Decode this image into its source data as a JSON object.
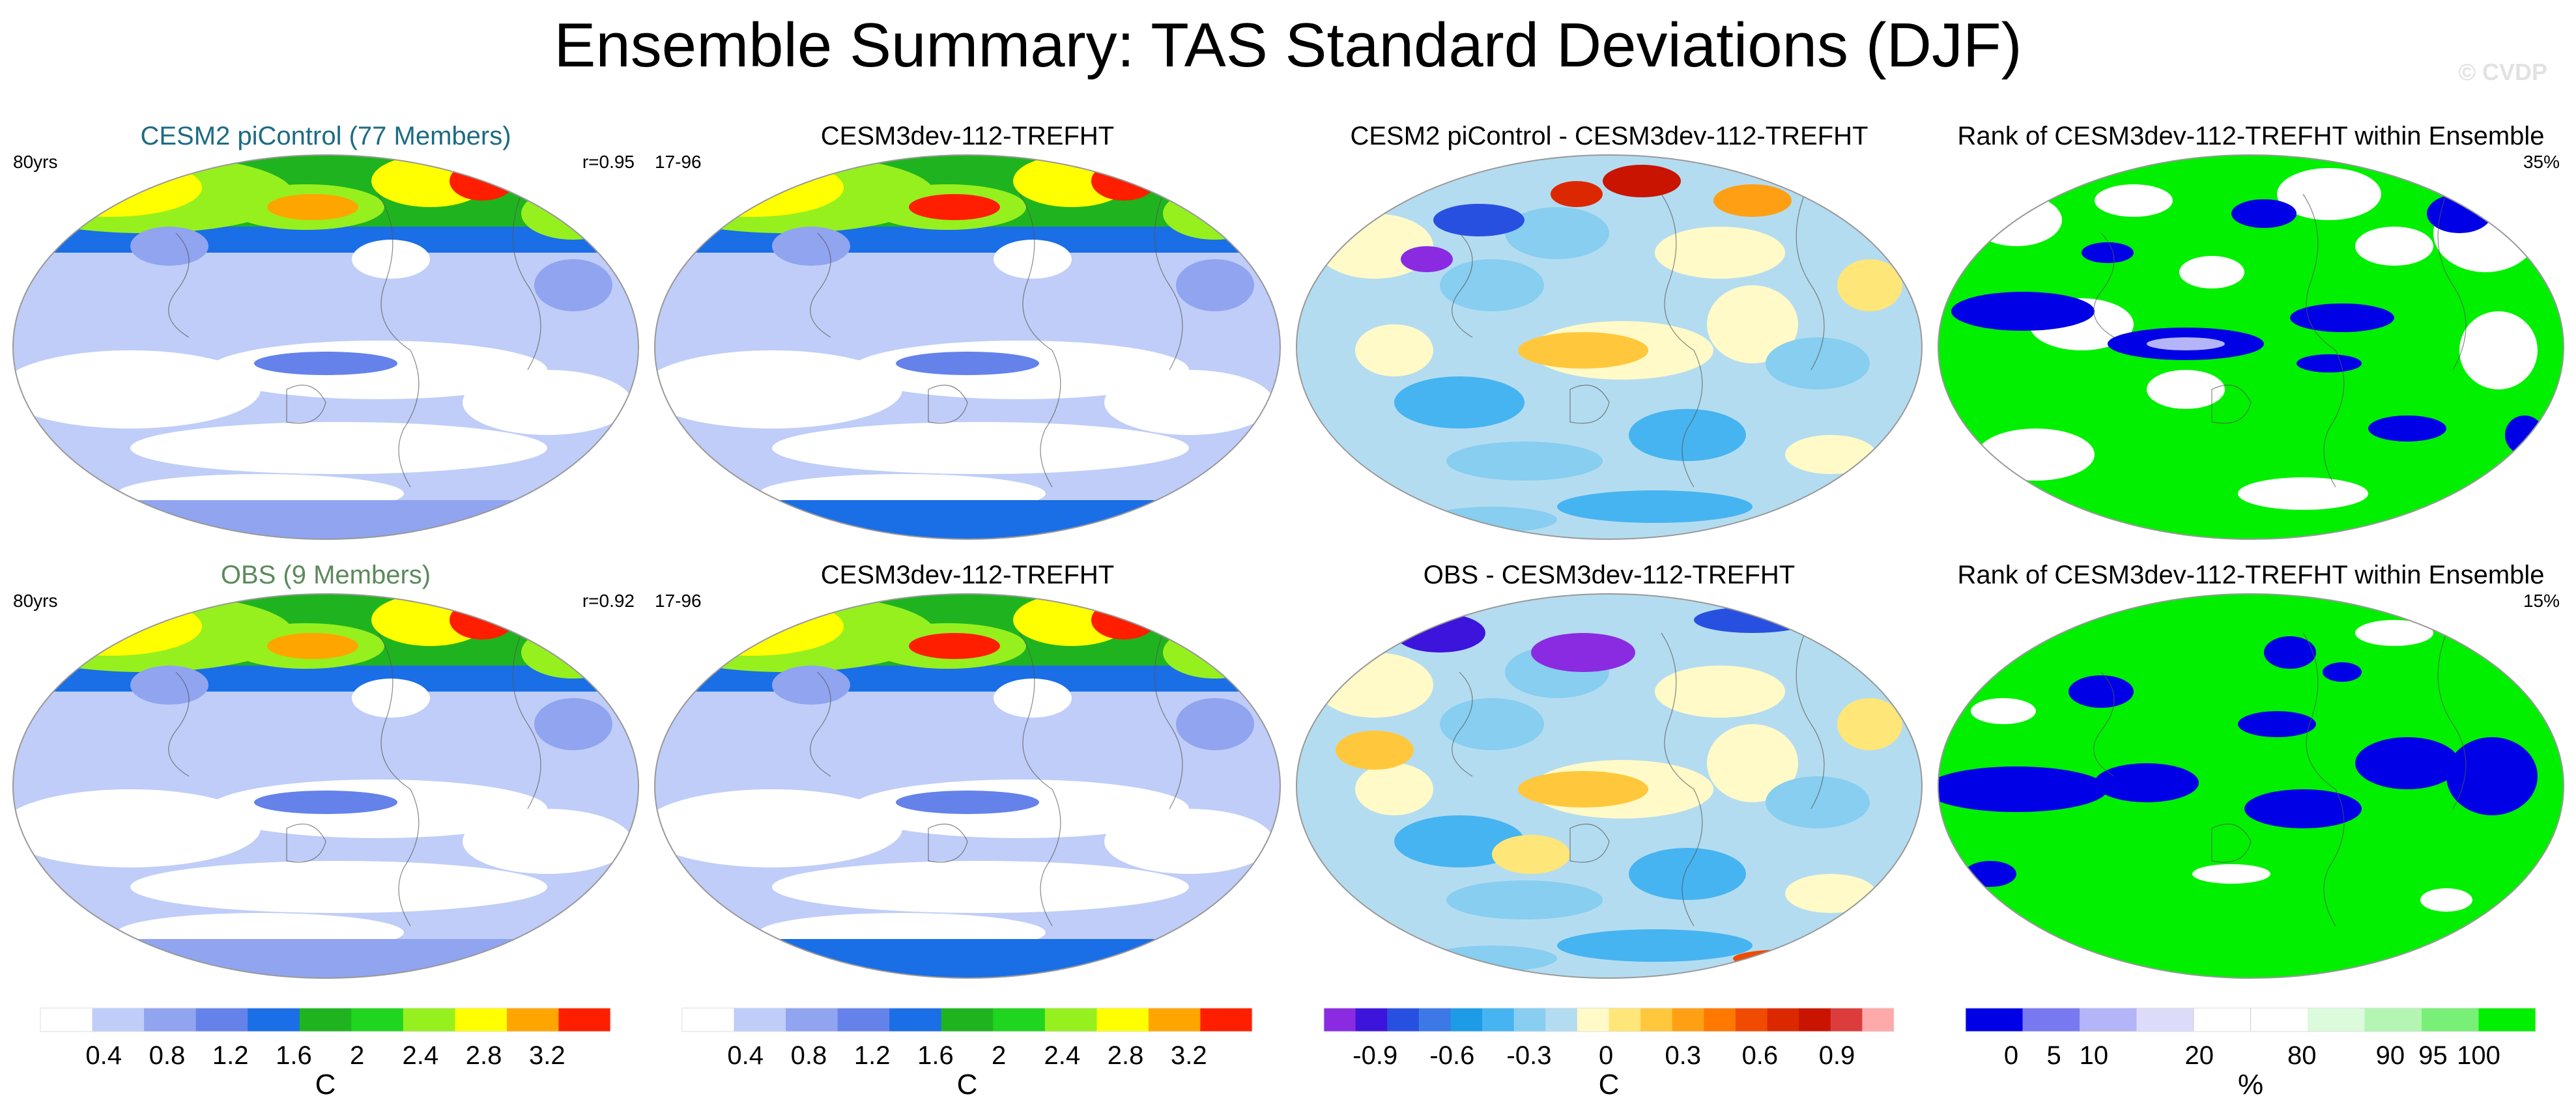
{
  "title": "Ensemble Summary: TAS Standard Deviations (DJF)",
  "watermark": "© CVDP",
  "panels": [
    {
      "id": "p1",
      "title": "CESM2 piControl (77 Members)",
      "title_color": "#1d6b83",
      "left_label": "80yrs",
      "right_label": "r=0.95",
      "kind": "std"
    },
    {
      "id": "p2",
      "title": "CESM3dev-112-TREFHT",
      "title_color": "#000000",
      "left_label": "17-96",
      "right_label": "",
      "kind": "std2"
    },
    {
      "id": "p3",
      "title": "CESM2 piControl - CESM3dev-112-TREFHT",
      "title_color": "#000000",
      "left_label": "",
      "right_label": "",
      "kind": "diff"
    },
    {
      "id": "p4",
      "title": "Rank of CESM3dev-112-TREFHT within Ensemble",
      "title_color": "#000000",
      "left_label": "",
      "right_label": "35%",
      "kind": "rank"
    },
    {
      "id": "p5",
      "title": "OBS (9 Members)",
      "title_color": "#5b8a5b",
      "left_label": "80yrs",
      "right_label": "r=0.92",
      "kind": "std"
    },
    {
      "id": "p6",
      "title": "CESM3dev-112-TREFHT",
      "title_color": "#000000",
      "left_label": "17-96",
      "right_label": "",
      "kind": "std2"
    },
    {
      "id": "p7",
      "title": "OBS - CESM3dev-112-TREFHT",
      "title_color": "#000000",
      "left_label": "",
      "right_label": "",
      "kind": "diff"
    },
    {
      "id": "p8",
      "title": "Rank of CESM3dev-112-TREFHT within Ensemble",
      "title_color": "#000000",
      "left_label": "",
      "right_label": "15%",
      "kind": "rank2"
    }
  ],
  "colorbars": [
    {
      "id": "cb1",
      "unit": "C",
      "ticks": [
        "0.4",
        "0.8",
        "1.2",
        "1.6",
        "2",
        "2.4",
        "2.8",
        "3.2"
      ],
      "colors": [
        "#ffffff",
        "#bfcdf8",
        "#90a4f0",
        "#6482ea",
        "#1a6ee6",
        "#1fb41f",
        "#1fd51f",
        "#96f01e",
        "#ffff00",
        "#ffa500",
        "#ff1e00"
      ]
    },
    {
      "id": "cb2",
      "unit": "C",
      "ticks": [
        "0.4",
        "0.8",
        "1.2",
        "1.6",
        "2",
        "2.4",
        "2.8",
        "3.2"
      ],
      "colors": [
        "#ffffff",
        "#bfcdf8",
        "#90a4f0",
        "#6482ea",
        "#1a6ee6",
        "#1fb41f",
        "#1fd51f",
        "#96f01e",
        "#ffff00",
        "#ffa500",
        "#ff1e00"
      ]
    },
    {
      "id": "cb3",
      "unit": "C",
      "ticks": [
        "-0.9",
        "-0.6",
        "-0.3",
        "0",
        "0.3",
        "0.6",
        "0.9"
      ],
      "colors": [
        "#8a2be2",
        "#3c14dc",
        "#2850e0",
        "#3c78e6",
        "#1e9be6",
        "#46b4f0",
        "#87cef0",
        "#b4dcf0",
        "#fffac8",
        "#ffe678",
        "#ffc83c",
        "#ffa014",
        "#ff7800",
        "#f04b00",
        "#dc2800",
        "#c81400",
        "#dc3c3c",
        "#ffaaaa"
      ]
    },
    {
      "id": "cb4",
      "unit": "%",
      "ticks": [
        "0",
        "5",
        "10",
        "20",
        "80",
        "90",
        "95",
        "100"
      ],
      "colors": [
        "#0000e6",
        "#7878f0",
        "#b4b4f8",
        "#dcdcfa",
        "#ffffff",
        "#ffffff",
        "#dcfadc",
        "#b4f5b4",
        "#78f078",
        "#00f000"
      ]
    }
  ],
  "chart_data": [
    {
      "type": "heatmap",
      "title": "CESM2 piControl (77 Members)",
      "variable": "TAS standard deviation (DJF)",
      "units": "C",
      "left_label": "80yrs",
      "right_label": "r=0.95",
      "levels": [
        0.4,
        0.8,
        1.2,
        1.6,
        2,
        2.4,
        2.8,
        3.2
      ]
    },
    {
      "type": "heatmap",
      "title": "CESM3dev-112-TREFHT",
      "variable": "TAS standard deviation (DJF)",
      "units": "C",
      "left_label": "17-96",
      "levels": [
        0.4,
        0.8,
        1.2,
        1.6,
        2,
        2.4,
        2.8,
        3.2
      ]
    },
    {
      "type": "heatmap",
      "title": "CESM2 piControl - CESM3dev-112-TREFHT",
      "variable": "Difference of TAS standard deviations",
      "units": "C",
      "levels": [
        -0.9,
        -0.6,
        -0.3,
        0,
        0.3,
        0.6,
        0.9
      ]
    },
    {
      "type": "heatmap",
      "title": "Rank of CESM3dev-112-TREFHT within Ensemble",
      "units": "%",
      "right_label": "35%",
      "levels": [
        0,
        5,
        10,
        20,
        80,
        90,
        95,
        100
      ]
    },
    {
      "type": "heatmap",
      "title": "OBS (9 Members)",
      "variable": "TAS standard deviation (DJF)",
      "units": "C",
      "left_label": "80yrs",
      "right_label": "r=0.92",
      "levels": [
        0.4,
        0.8,
        1.2,
        1.6,
        2,
        2.4,
        2.8,
        3.2
      ]
    },
    {
      "type": "heatmap",
      "title": "CESM3dev-112-TREFHT",
      "variable": "TAS standard deviation (DJF)",
      "units": "C",
      "left_label": "17-96",
      "levels": [
        0.4,
        0.8,
        1.2,
        1.6,
        2,
        2.4,
        2.8,
        3.2
      ]
    },
    {
      "type": "heatmap",
      "title": "OBS - CESM3dev-112-TREFHT",
      "variable": "Difference of TAS standard deviations",
      "units": "C",
      "levels": [
        -0.9,
        -0.6,
        -0.3,
        0,
        0.3,
        0.6,
        0.9
      ]
    },
    {
      "type": "heatmap",
      "title": "Rank of CESM3dev-112-TREFHT within Ensemble",
      "units": "%",
      "right_label": "15%",
      "levels": [
        0,
        5,
        10,
        20,
        80,
        90,
        95,
        100
      ]
    }
  ]
}
